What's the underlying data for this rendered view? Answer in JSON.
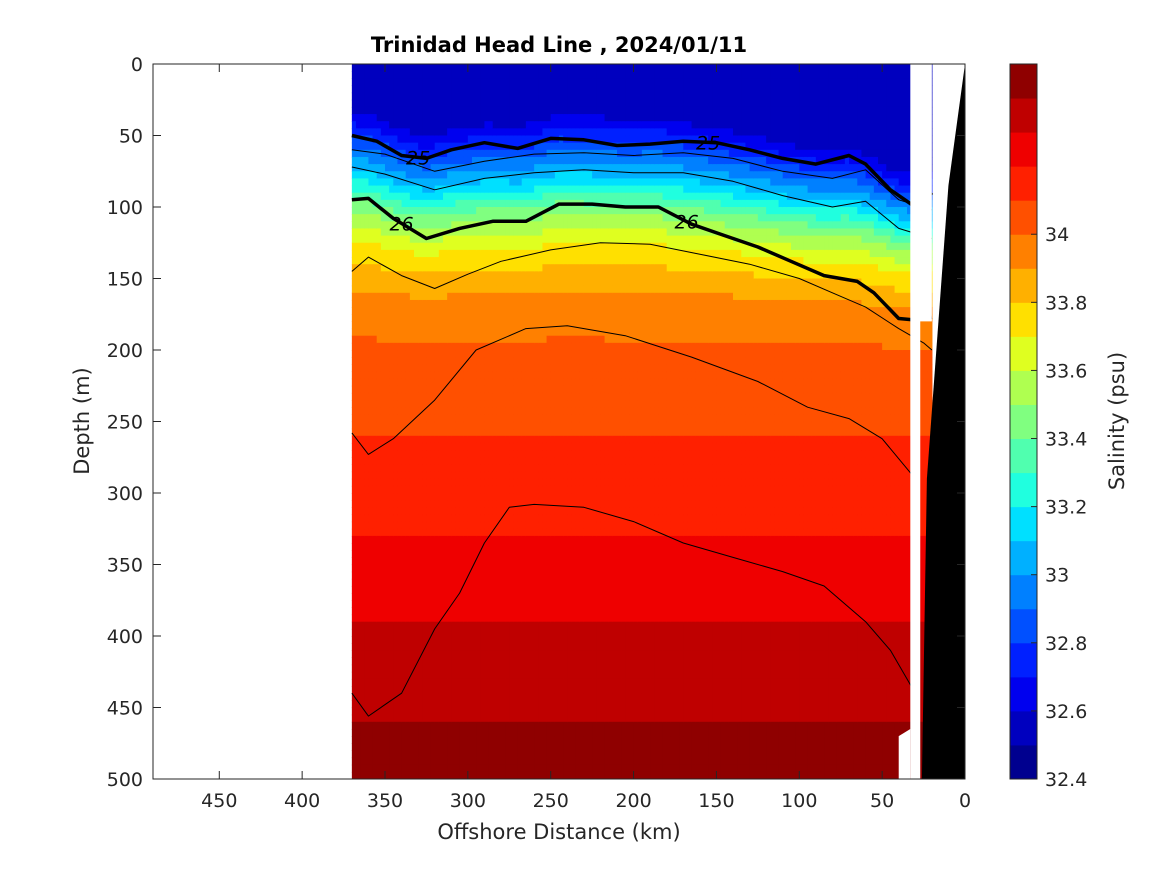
{
  "chart_data": {
    "type": "contour",
    "title": "Trinidad Head Line , 2024/01/11",
    "xlabel": "Offshore Distance (km)",
    "ylabel": "Depth (m)",
    "colorbar_label": "Salinity (psu)",
    "xlim": [
      490,
      0
    ],
    "ylim": [
      0,
      500
    ],
    "x_reversed": true,
    "y_reversed": true,
    "x_ticks": [
      450,
      400,
      350,
      300,
      250,
      200,
      150,
      100,
      50,
      0
    ],
    "y_ticks": [
      0,
      50,
      100,
      150,
      200,
      250,
      300,
      350,
      400,
      450,
      500
    ],
    "data_extent_km": [
      370,
      20
    ],
    "colorbar": {
      "min": 32.4,
      "max": 34.5,
      "step": 0.1,
      "ticks": [
        32.4,
        32.6,
        32.8,
        33,
        33.2,
        33.4,
        33.6,
        33.8,
        34
      ],
      "tick_labels": [
        "32.4",
        "32.6",
        "32.8",
        "33",
        "33.2",
        "33.4",
        "33.6",
        "33.8",
        "34"
      ],
      "colors": [
        "#00008f",
        "#0000bf",
        "#0000ef",
        "#0020ff",
        "#0050ff",
        "#0080ff",
        "#00b0ff",
        "#00e0ff",
        "#20ffdf",
        "#50ffaf",
        "#80ff80",
        "#afff50",
        "#dfff20",
        "#ffe000",
        "#ffb000",
        "#ff8000",
        "#ff5000",
        "#ff2000",
        "#ef0000",
        "#bf0000",
        "#8f0000"
      ]
    },
    "salinity_profile_depths_m": [
      0,
      40,
      50,
      60,
      70,
      80,
      90,
      100,
      110,
      120,
      130,
      140,
      150,
      160,
      175,
      200,
      260,
      330,
      420,
      500
    ],
    "salinity_profile_values_psu": [
      32.55,
      32.6,
      32.72,
      32.85,
      32.98,
      33.1,
      33.25,
      33.4,
      33.52,
      33.62,
      33.72,
      33.78,
      33.85,
      33.9,
      33.95,
      34.02,
      34.1,
      34.2,
      34.35,
      34.45
    ],
    "density_contours": [
      {
        "label": "25",
        "bold": true,
        "x_km": [
          370,
          355,
          340,
          325,
          310,
          290,
          270,
          250,
          230,
          210,
          190,
          170,
          150,
          130,
          110,
          90,
          70,
          60,
          45,
          30,
          20
        ],
        "depth_m": [
          50,
          54,
          64,
          66,
          60,
          55,
          59,
          52,
          53,
          57,
          56,
          54,
          55,
          60,
          66,
          70,
          64,
          70,
          88,
          100,
          90
        ]
      },
      {
        "label": "26",
        "bold": true,
        "x_km": [
          370,
          360,
          345,
          325,
          305,
          285,
          265,
          245,
          225,
          205,
          185,
          165,
          145,
          125,
          105,
          85,
          65,
          55,
          40,
          30,
          20
        ],
        "depth_m": [
          95,
          94,
          108,
          122,
          115,
          110,
          110,
          98,
          98,
          100,
          100,
          112,
          120,
          128,
          138,
          148,
          152,
          160,
          178,
          179,
          177
        ]
      },
      {
        "label": "",
        "bold": false,
        "x_km": [
          370,
          350,
          320,
          290,
          260,
          230,
          200,
          170,
          140,
          110,
          80,
          60,
          40,
          20
        ],
        "depth_m": [
          60,
          63,
          75,
          68,
          63,
          62,
          64,
          62,
          66,
          75,
          80,
          74,
          95,
          102
        ]
      },
      {
        "label": "",
        "bold": false,
        "x_km": [
          370,
          350,
          320,
          290,
          260,
          230,
          200,
          170,
          140,
          110,
          80,
          60,
          40,
          20
        ],
        "depth_m": [
          72,
          77,
          88,
          80,
          76,
          74,
          76,
          76,
          82,
          92,
          100,
          96,
          115,
          122
        ]
      },
      {
        "label": "",
        "bold": false,
        "x_km": [
          370,
          360,
          340,
          320,
          300,
          280,
          250,
          220,
          190,
          160,
          130,
          100,
          80,
          60,
          40,
          25,
          20
        ],
        "depth_m": [
          145,
          135,
          148,
          157,
          147,
          138,
          130,
          125,
          126,
          133,
          140,
          150,
          160,
          170,
          185,
          195,
          200
        ]
      },
      {
        "label": "",
        "bold": false,
        "x_km": [
          370,
          360,
          345,
          320,
          295,
          265,
          240,
          205,
          165,
          125,
          95,
          70,
          50,
          30
        ],
        "depth_m": [
          258,
          273,
          262,
          235,
          200,
          185,
          183,
          190,
          205,
          222,
          240,
          248,
          262,
          290
        ]
      },
      {
        "label": "",
        "bold": false,
        "x_km": [
          370,
          360,
          340,
          320,
          305,
          290,
          275,
          260,
          230,
          200,
          170,
          140,
          110,
          85,
          60,
          45,
          30
        ],
        "depth_m": [
          440,
          456,
          440,
          395,
          370,
          335,
          310,
          308,
          310,
          320,
          335,
          345,
          355,
          365,
          390,
          410,
          440
        ]
      }
    ]
  }
}
